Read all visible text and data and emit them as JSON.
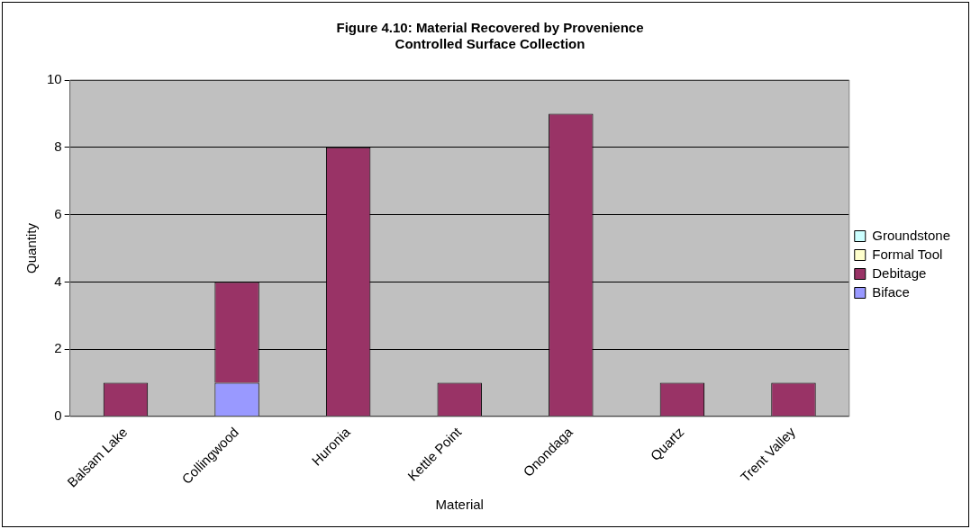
{
  "chart_data": {
    "type": "bar",
    "title": "Figure 4.10: Material Recovered by Provenience",
    "subtitle": "Controlled Surface Collection",
    "xlabel": "Material",
    "ylabel": "Quantity",
    "categories": [
      "Balsam Lake",
      "Collingwood",
      "Huronia",
      "Kettle Point",
      "Onondaga",
      "Quartz",
      "Trent Valley"
    ],
    "series": [
      {
        "name": "Biface",
        "color": "#9999ff",
        "values": [
          0,
          1,
          0,
          0,
          0,
          0,
          0
        ]
      },
      {
        "name": "Debitage",
        "color": "#993366",
        "values": [
          1,
          3,
          8,
          1,
          9,
          1,
          1
        ]
      },
      {
        "name": "Formal Tool",
        "color": "#ffffcc",
        "values": [
          0,
          0,
          0,
          0,
          0,
          0,
          0
        ]
      },
      {
        "name": "Groundstone",
        "color": "#ccffff",
        "values": [
          0,
          0,
          0,
          0,
          0,
          0,
          0
        ]
      }
    ],
    "stacked": true,
    "ylim": [
      0,
      10
    ],
    "yticks": [
      0,
      2,
      4,
      6,
      8,
      10
    ],
    "grid": "y",
    "legend": "right"
  }
}
